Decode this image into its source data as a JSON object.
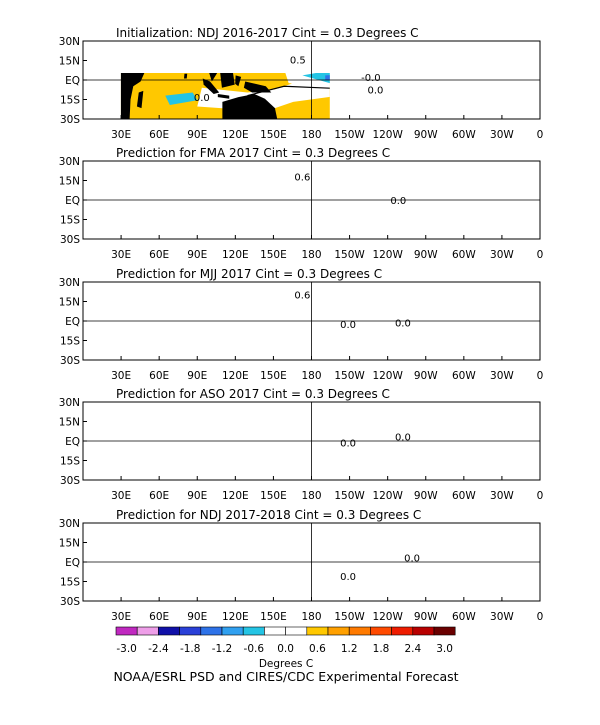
{
  "panels": [
    {
      "title": "Initialization: NDJ 2016-2017  Cint = 0.3 Degrees C",
      "variant": 0,
      "contour_labels": [
        "0.5",
        "0.0",
        "0.0",
        "-0.0"
      ]
    },
    {
      "title": "Prediction for FMA 2017  Cint = 0.3 Degrees C",
      "variant": 1,
      "contour_labels": [
        "0.6",
        "0.0"
      ]
    },
    {
      "title": "Prediction for MJJ 2017  Cint = 0.3 Degrees C",
      "variant": 2,
      "contour_labels": [
        "0.6",
        "0.0",
        "0.0"
      ]
    },
    {
      "title": "Prediction for ASO 2017  Cint = 0.3 Degrees C",
      "variant": 3,
      "contour_labels": [
        "0.0",
        "0.0"
      ]
    },
    {
      "title": "Prediction for NDJ 2017-2018  Cint = 0.3 Degrees C",
      "variant": 4,
      "contour_labels": [
        "0.0",
        "0.0"
      ]
    }
  ],
  "lat_labels": [
    "30N",
    "15N",
    "EQ",
    "15S",
    "30S"
  ],
  "lon_labels": [
    "30E",
    "60E",
    "90E",
    "120E",
    "150E",
    "180",
    "150W",
    "120W",
    "90W",
    "60W",
    "30W",
    "0"
  ],
  "colorbar": {
    "colors": [
      "#c028c0",
      "#ee9ee8",
      "#1010a8",
      "#2a40d8",
      "#2e72e8",
      "#30a0f0",
      "#24c4e4",
      "#ffffff",
      "#ffffff",
      "#ffc800",
      "#ffa000",
      "#ff7a00",
      "#ff4a00",
      "#ee1c00",
      "#b80000",
      "#6a0000"
    ],
    "labels": [
      "-3.0",
      "-2.4",
      "-1.8",
      "-1.2",
      "-0.6",
      "0.0",
      "0.6",
      "1.2",
      "1.8",
      "2.4",
      "3.0"
    ],
    "unit": "Degrees C"
  },
  "footer": "NOAA/ESRL PSD and CIRES/CDC Experimental Forecast"
}
